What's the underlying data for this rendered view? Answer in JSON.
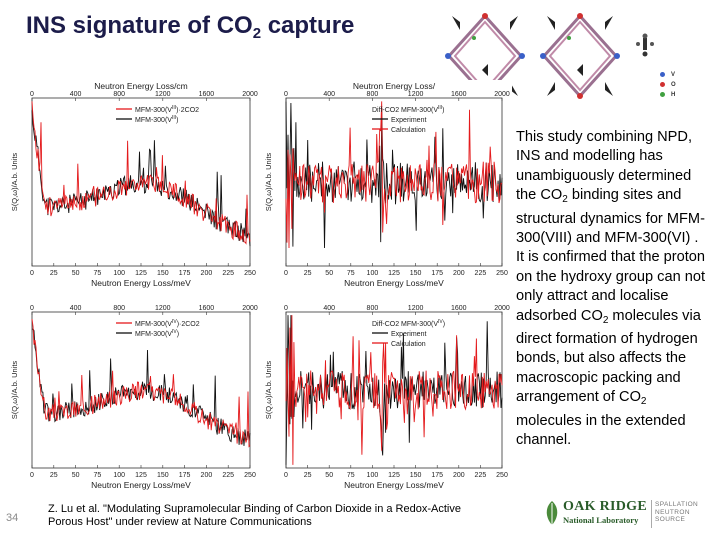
{
  "title": {
    "main": "INS signature of CO",
    "sub": "2",
    "tail": " capture"
  },
  "body_text": {
    "p1": "This study combining NPD, INS and modelling has unambiguously determined the CO",
    "p1_sub": "2",
    "p2": " binding sites and structural dynamics for MFM-300(VIII) and MFM-300(VI) . It is confirmed that the proton on the hydroxy group can not only attract and localise adsorbed CO",
    "p2_sub": "2",
    "p3": " molecules via direct formation of hydrogen bonds, but also affects the macroscopic packing and arrangement of CO",
    "p3_sub": "2",
    "p4": " molecules in the extended channel."
  },
  "reference": "Z. Lu et al. \"Modulating Supramolecular Binding of Carbon Dioxide in a Redox-Active Porous Host\" under review at Nature Communications",
  "slide_number": "34",
  "logo": {
    "line1": "OAK RIDGE",
    "line2": "National Laboratory",
    "sub": "SPALLATION NEUTRON SOURCE"
  },
  "mol_legend": [
    {
      "label": "V",
      "color": "#3a60c8"
    },
    {
      "label": "O",
      "color": "#d03030"
    },
    {
      "label": "H",
      "color": "#40a040"
    }
  ],
  "axes": {
    "top_label": "Neutron Energy Loss/cm",
    "top_label_b": "Neutron Energy Loss/",
    "bottom_label": "Neutron Energy Loss/meV",
    "ylabel": "S(Q,ω)/A.b. Units",
    "top_ticks": [
      "0",
      "400",
      "800",
      "1200",
      "1600",
      "2000"
    ],
    "bottom_ticks": [
      "0",
      "25",
      "50",
      "75",
      "100",
      "125",
      "150",
      "175",
      "200",
      "225",
      "250"
    ]
  },
  "legends": {
    "tl": [
      "MFM-300(V",
      "MFM-300(V"
    ],
    "tl_sup": [
      "III",
      "III"
    ],
    "tl_tail": [
      ")·2CO2",
      ")"
    ],
    "tr_title": "Diff-CO2 MFM-300(V",
    "tr_sup": "III",
    "tr_items": [
      "Experiment",
      "Calculation"
    ],
    "bl": [
      "MFM-300(V",
      "MFM-300(V"
    ],
    "bl_sup": [
      "IV",
      "IV"
    ],
    "bl_tail": [
      ")·2CO2",
      ")"
    ],
    "br_title": "Diff-CO2 MFM-300(V",
    "br_sup": "IV",
    "br_items": [
      "Experiment",
      "Calculation"
    ]
  },
  "colors": {
    "red": "#e41a1c",
    "black": "#111111",
    "title": "#1c1c4a",
    "logo_green": "#2a5c2a"
  }
}
